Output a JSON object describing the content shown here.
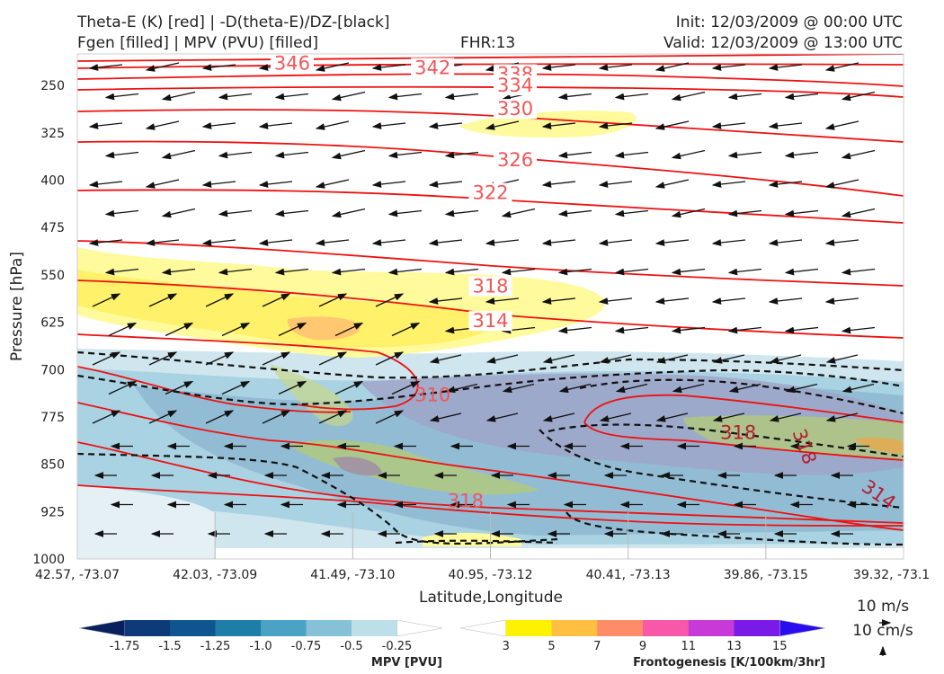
{
  "header": {
    "line1_left": "Theta-E (K) [red] | -D(theta-E)/DZ-[black]",
    "line2_left": "Fgen [filled] | MPV (PVU) [filled]",
    "fhr": "FHR:13",
    "init": "Init: 12/03/2009 @ 00:00 UTC",
    "valid": "Valid: 12/03/2009 @ 13:00 UTC"
  },
  "chart_data": {
    "type": "cross-section contour",
    "xlabel": "Latitude,Longitude",
    "ylabel": "Pressure [hPa]",
    "x_ticks": [
      "42.57, -73.07",
      "42.03, -73.09",
      "41.49, -73.10",
      "40.95, -73.12",
      "40.41, -73.13",
      "39.86, -73.15",
      "39.32, -73.1"
    ],
    "y_ticks": [
      250,
      325,
      400,
      475,
      550,
      625,
      700,
      775,
      850,
      925,
      1000
    ],
    "ylim": [
      200,
      1000
    ],
    "y_inverted": true,
    "theta_e_contour_labels": [
      {
        "value": 346,
        "x_frac": 0.26,
        "p": 215
      },
      {
        "value": 342,
        "x_frac": 0.43,
        "p": 222
      },
      {
        "value": 338,
        "x_frac": 0.53,
        "p": 232
      },
      {
        "value": 334,
        "x_frac": 0.53,
        "p": 250
      },
      {
        "value": 330,
        "x_frac": 0.53,
        "p": 287
      },
      {
        "value": 326,
        "x_frac": 0.53,
        "p": 368
      },
      {
        "value": 322,
        "x_frac": 0.5,
        "p": 420
      },
      {
        "value": 318,
        "x_frac": 0.5,
        "p": 568
      },
      {
        "value": 314,
        "x_frac": 0.5,
        "p": 623
      },
      {
        "value": 310,
        "x_frac": 0.43,
        "p": 740
      },
      {
        "value": 318,
        "x_frac": 0.8,
        "p": 800,
        "rotate": 0
      },
      {
        "value": 318,
        "x_frac": 0.88,
        "p": 822,
        "rotate": 70
      },
      {
        "value": 314,
        "x_frac": 0.97,
        "p": 898,
        "rotate": 35
      },
      {
        "value": 318,
        "x_frac": 0.47,
        "p": 908
      }
    ],
    "mpv_colorbar": {
      "title": "MPV [PVU]",
      "labels": [
        "-1.75",
        "-1.5",
        "-1.25",
        "-1.0",
        "-0.75",
        "-0.5",
        "-0.25"
      ],
      "colors": [
        "#08205e",
        "#0f3a7a",
        "#0f5690",
        "#1e7ea7",
        "#4aa2c4",
        "#86c1d7",
        "#bddfe8",
        "#ffffff"
      ]
    },
    "fgen_colorbar": {
      "title": "Frontogenesis [K/100km/3hr]",
      "labels": [
        "3",
        "5",
        "7",
        "9",
        "11",
        "13",
        "15"
      ],
      "colors": [
        "#ffffff",
        "#fff200",
        "#ffbf40",
        "#ff8c69",
        "#f858a8",
        "#c83ad8",
        "#7a1ae8",
        "#2a0cf0"
      ]
    },
    "vector_legend": [
      "10 m/s",
      "10 cm/s"
    ]
  }
}
